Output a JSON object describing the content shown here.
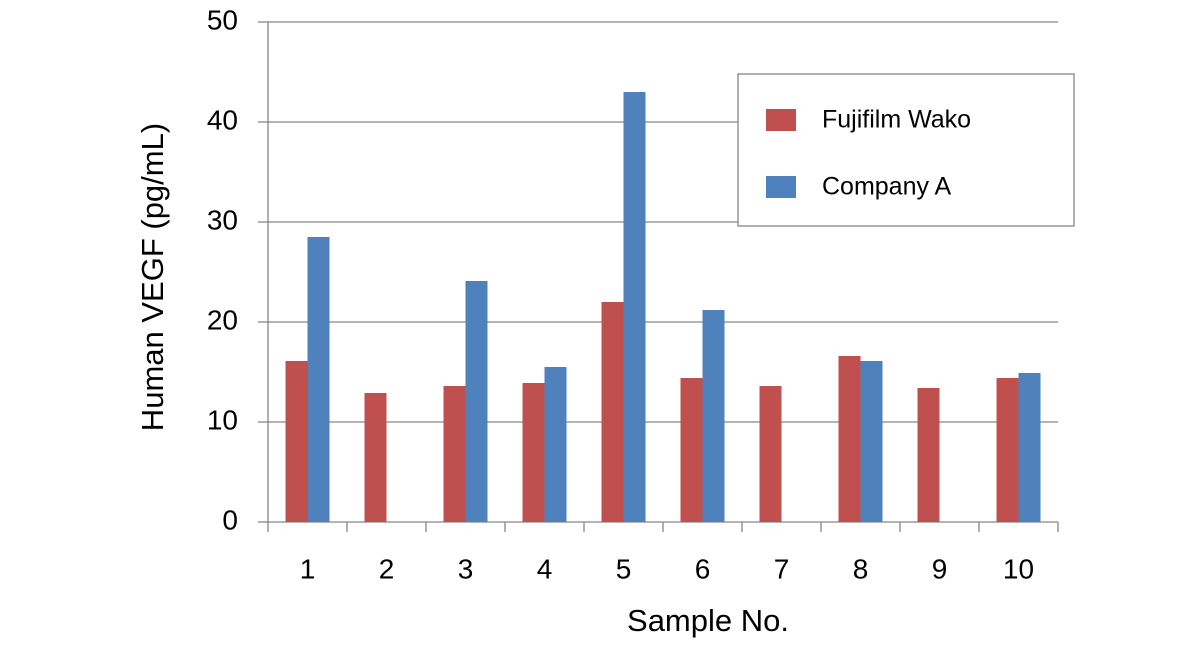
{
  "chart_data": {
    "type": "bar",
    "x_label": "Sample No.",
    "y_label": "Human VEGF (pg/mL)",
    "categories": [
      "1",
      "2",
      "3",
      "4",
      "5",
      "6",
      "7",
      "8",
      "9",
      "10"
    ],
    "series": [
      {
        "name": "Fujifilm Wako",
        "color": "#c0504d",
        "values": [
          16.1,
          12.9,
          13.6,
          13.9,
          22.0,
          14.4,
          13.6,
          16.6,
          13.4,
          14.4
        ]
      },
      {
        "name": "Company A",
        "color": "#4f81bd",
        "values": [
          28.5,
          null,
          24.1,
          15.5,
          43.0,
          21.2,
          null,
          16.1,
          null,
          14.9
        ]
      }
    ],
    "ylim": [
      0,
      50
    ],
    "yticks": [
      0,
      10,
      20,
      30,
      40,
      50
    ],
    "grid": true,
    "legend": "upper right"
  }
}
